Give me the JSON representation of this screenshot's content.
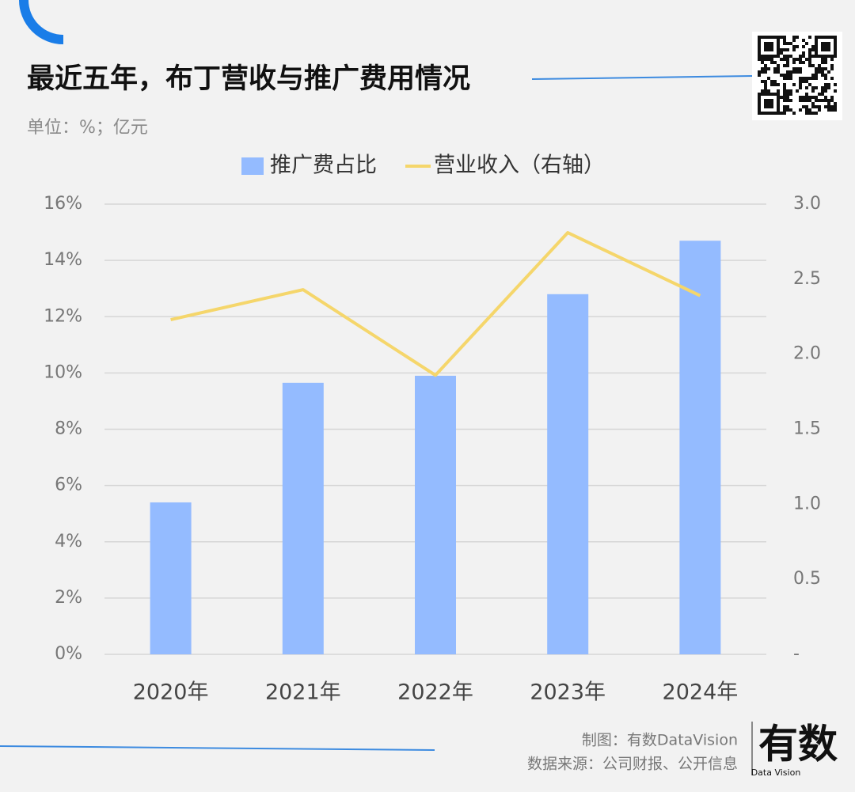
{
  "chart_data": {
    "type": "bar",
    "title": "最近五年，布丁营收与推广费用情况",
    "subtitle": "单位：%；亿元",
    "categories": [
      "2020年",
      "2021年",
      "2022年",
      "2023年",
      "2024年"
    ],
    "series": [
      {
        "name": "推广费占比",
        "type": "bar",
        "color": "#94bbff",
        "values": [
          5.4,
          9.65,
          9.9,
          12.8,
          14.7
        ]
      },
      {
        "name": "营业收入（右轴）",
        "type": "line",
        "axis": "y2",
        "color": "#f5d66b",
        "values": [
          2.23,
          2.43,
          1.86,
          2.81,
          2.39
        ]
      }
    ],
    "ylim": [
      0,
      16
    ],
    "yticks": [
      {
        "value": 0,
        "label": "0%"
      },
      {
        "value": 2,
        "label": "2%"
      },
      {
        "value": 4,
        "label": "4%"
      },
      {
        "value": 6,
        "label": "6%"
      },
      {
        "value": 8,
        "label": "8%"
      },
      {
        "value": 10,
        "label": "10%"
      },
      {
        "value": 12,
        "label": "12%"
      },
      {
        "value": 14,
        "label": "14%"
      },
      {
        "value": 16,
        "label": "16%"
      }
    ],
    "y2lim": [
      0,
      3
    ],
    "y2ticks": [
      {
        "value": 0,
        "label": "-"
      },
      0.5,
      {
        "value": 1,
        "label": "1.0"
      },
      1.5,
      {
        "value": 2,
        "label": "2.0"
      },
      2.5,
      {
        "value": 3,
        "label": "3.0"
      }
    ],
    "grid": true,
    "legend": "top",
    "credit": "制图：有数DataVision",
    "source": "数据来源：公司财报、公开信息",
    "logo": "有数",
    "logo_sub": "Data Vision"
  }
}
